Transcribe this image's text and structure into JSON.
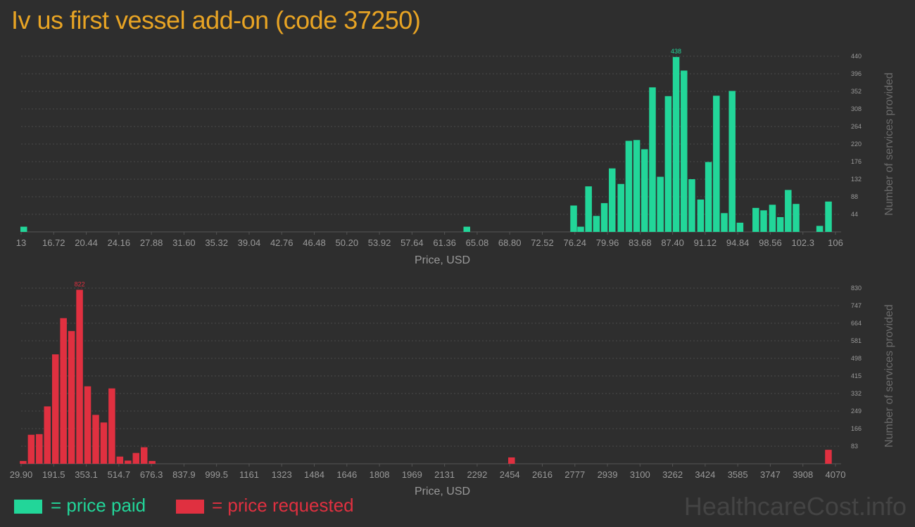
{
  "title": "Iv us first vessel add-on (code 37250)",
  "colors": {
    "background": "#2e2e2e",
    "title": "#e8a424",
    "paid": "#22d699",
    "requested": "#e03040",
    "axis_text": "#9a9a9a",
    "grid": "#4a4a4a"
  },
  "legend": {
    "paid_label": "= price paid",
    "requested_label": "= price requested"
  },
  "watermark": "HealthcareCost.info",
  "chart_data": [
    {
      "type": "bar",
      "series_name": "price paid",
      "xlabel": "Price, USD",
      "ylabel": "Number of services provided",
      "x_ticks": [
        "13",
        "16.72",
        "20.44",
        "24.16",
        "27.88",
        "31.60",
        "35.32",
        "39.04",
        "42.76",
        "46.48",
        "50.20",
        "53.92",
        "57.64",
        "61.36",
        "65.08",
        "68.80",
        "72.52",
        "76.24",
        "79.96",
        "83.68",
        "87.40",
        "91.12",
        "94.84",
        "98.56",
        "102.3",
        "106"
      ],
      "x_range": [
        13,
        106
      ],
      "y_ticks": [
        "44",
        "88",
        "132",
        "176",
        "220",
        "264",
        "308",
        "352",
        "396",
        "440"
      ],
      "ylim": [
        0,
        440
      ],
      "peak_label": "438",
      "bars": [
        {
          "x": 13.3,
          "y": 13
        },
        {
          "x": 63.9,
          "y": 13
        },
        {
          "x": 76.1,
          "y": 66
        },
        {
          "x": 76.9,
          "y": 13
        },
        {
          "x": 77.8,
          "y": 114
        },
        {
          "x": 78.7,
          "y": 40
        },
        {
          "x": 79.6,
          "y": 72
        },
        {
          "x": 80.5,
          "y": 159
        },
        {
          "x": 81.5,
          "y": 120
        },
        {
          "x": 82.4,
          "y": 228
        },
        {
          "x": 83.3,
          "y": 230
        },
        {
          "x": 84.2,
          "y": 207
        },
        {
          "x": 85.1,
          "y": 362
        },
        {
          "x": 86.0,
          "y": 138
        },
        {
          "x": 86.9,
          "y": 340
        },
        {
          "x": 87.8,
          "y": 438
        },
        {
          "x": 88.7,
          "y": 404
        },
        {
          "x": 89.6,
          "y": 132
        },
        {
          "x": 90.6,
          "y": 81
        },
        {
          "x": 91.5,
          "y": 175
        },
        {
          "x": 92.4,
          "y": 341
        },
        {
          "x": 93.3,
          "y": 47
        },
        {
          "x": 94.2,
          "y": 353
        },
        {
          "x": 95.1,
          "y": 23
        },
        {
          "x": 96.9,
          "y": 60
        },
        {
          "x": 97.8,
          "y": 54
        },
        {
          "x": 98.8,
          "y": 68
        },
        {
          "x": 99.7,
          "y": 37
        },
        {
          "x": 100.6,
          "y": 105
        },
        {
          "x": 101.5,
          "y": 70
        },
        {
          "x": 104.2,
          "y": 15
        },
        {
          "x": 105.2,
          "y": 76
        }
      ]
    },
    {
      "type": "bar",
      "series_name": "price requested",
      "xlabel": "Price, USD",
      "ylabel": "Number of services provided",
      "x_ticks": [
        "29.90",
        "191.5",
        "353.1",
        "514.7",
        "676.3",
        "837.9",
        "999.5",
        "1161",
        "1323",
        "1484",
        "1646",
        "1808",
        "1969",
        "2131",
        "2292",
        "2454",
        "2616",
        "2777",
        "2939",
        "3100",
        "3262",
        "3424",
        "3585",
        "3747",
        "3908",
        "4070"
      ],
      "x_range": [
        29.9,
        4070
      ],
      "y_ticks": [
        "83",
        "166",
        "249",
        "332",
        "415",
        "498",
        "581",
        "664",
        "747",
        "830"
      ],
      "ylim": [
        0,
        830
      ],
      "peak_label": "822",
      "bars": [
        {
          "x": 40,
          "y": 13
        },
        {
          "x": 80,
          "y": 137
        },
        {
          "x": 120,
          "y": 140
        },
        {
          "x": 160,
          "y": 271
        },
        {
          "x": 200,
          "y": 517
        },
        {
          "x": 240,
          "y": 688
        },
        {
          "x": 280,
          "y": 627
        },
        {
          "x": 320,
          "y": 822
        },
        {
          "x": 360,
          "y": 366
        },
        {
          "x": 400,
          "y": 231
        },
        {
          "x": 440,
          "y": 195
        },
        {
          "x": 480,
          "y": 356
        },
        {
          "x": 520,
          "y": 34
        },
        {
          "x": 560,
          "y": 15
        },
        {
          "x": 600,
          "y": 51
        },
        {
          "x": 640,
          "y": 78
        },
        {
          "x": 680,
          "y": 13
        },
        {
          "x": 2463,
          "y": 30
        },
        {
          "x": 4035,
          "y": 66
        }
      ]
    }
  ]
}
